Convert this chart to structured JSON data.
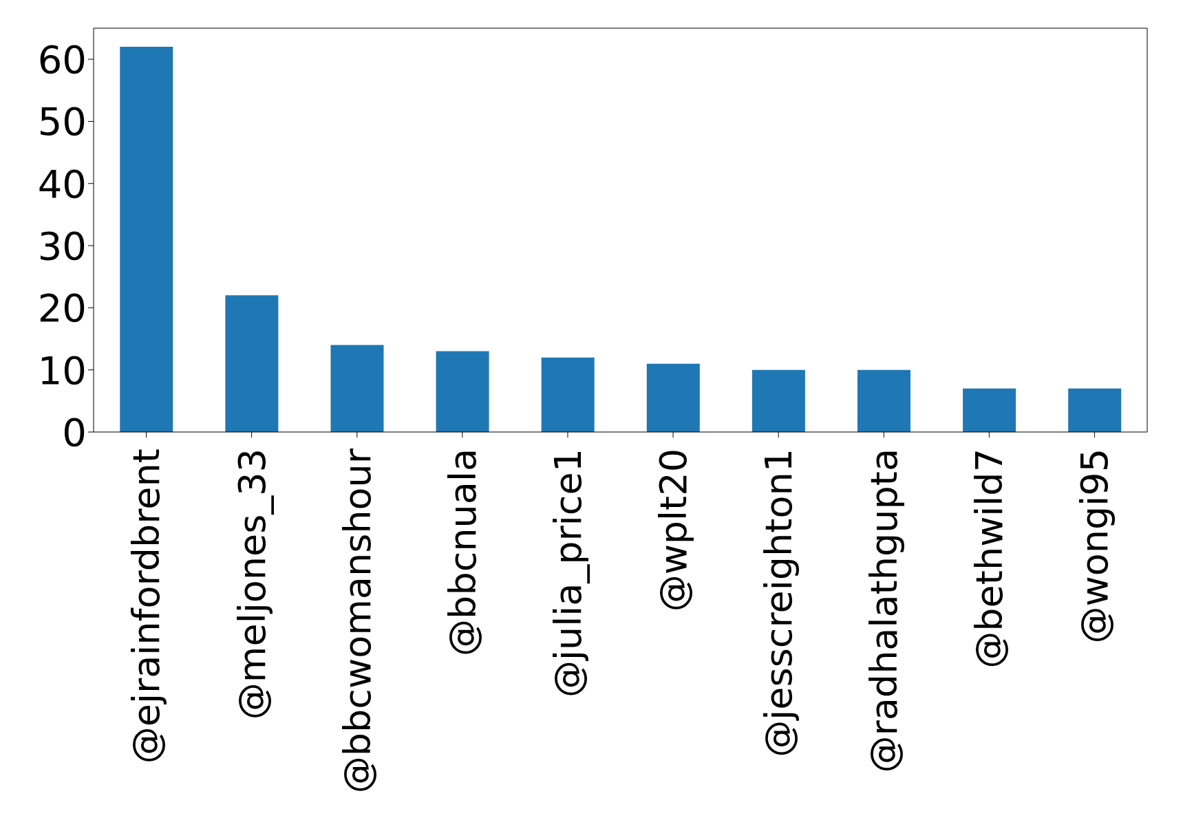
{
  "chart_data": {
    "type": "bar",
    "categories": [
      "@ejrainfordbrent",
      "@meljones_33",
      "@bbcwomanshour",
      "@bbcnuala",
      "@julia_price1",
      "@wplt20",
      "@jesscreighton1",
      "@radhalathgupta",
      "@bethwild7",
      "@wongi95"
    ],
    "values": [
      62,
      22,
      14,
      13,
      12,
      11,
      10,
      10,
      7,
      7
    ],
    "color": "#1f77b4",
    "ylim": [
      0,
      65
    ],
    "yticks": [
      0,
      10,
      20,
      30,
      40,
      50,
      60
    ]
  }
}
